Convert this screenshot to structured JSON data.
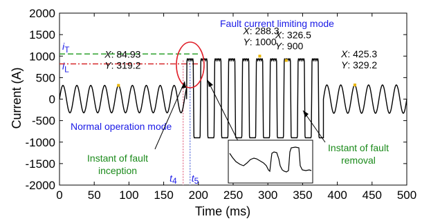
{
  "chart_data": {
    "type": "line",
    "xlabel": "Time (ms)",
    "ylabel": "Current (A)",
    "xlim": [
      0,
      500
    ],
    "ylim": [
      -2000,
      2000
    ],
    "x_ticks": [
      0,
      50,
      100,
      150,
      200,
      250,
      300,
      350,
      400,
      450,
      500
    ],
    "y_ticks": [
      -2000,
      -1500,
      -1000,
      -500,
      0,
      500,
      1000,
      1500,
      2000
    ],
    "grid": false,
    "series": [
      {
        "color": "#000000",
        "segments": [
          {
            "phase": "normal",
            "x_range": [
              0,
              183
            ],
            "shape": "sine",
            "amplitude": 319.2,
            "frequency_hz": 50
          },
          {
            "phase": "fault limiting",
            "x_range": [
              183,
              380
            ],
            "shape": "square",
            "amplitude": 900,
            "peak": 1000,
            "frequency_hz": 50
          },
          {
            "phase": "after removal",
            "x_range": [
              380,
              500
            ],
            "shape": "sine",
            "amplitude": 329.2,
            "frequency_hz": 50
          }
        ]
      }
    ],
    "threshold_lines": [
      {
        "label_main": "i",
        "label_sub": "T",
        "y": 1050,
        "x_range": [
          0,
          200
        ],
        "color": "#2ca02c",
        "style": "dashed"
      },
      {
        "label_main": "i",
        "label_sub": "L",
        "y": 820,
        "x_range": [
          0,
          200
        ],
        "color": "#d62728",
        "style": "dash-dot"
      }
    ],
    "vertical_markers": [
      {
        "label_main": "t",
        "label_sub": "4",
        "x": 178,
        "color": "#e0607e",
        "style": "dotted"
      },
      {
        "label_main": "t",
        "label_sub": "5",
        "x": 188,
        "color": "#4a62d8",
        "style": "dotted"
      }
    ],
    "data_labels": [
      {
        "x_text": "84.93",
        "y_text": "319.2",
        "x": 84.93,
        "y": 319.2
      },
      {
        "x_text": "288.3",
        "y_text": "1000",
        "x": 288.3,
        "y": 1000
      },
      {
        "x_text": "326.5",
        "y_text": "900",
        "x": 326.5,
        "y": 900
      },
      {
        "x_text": "425.3",
        "y_text": "329.2",
        "x": 425.3,
        "y": 329.2
      }
    ],
    "annotations": {
      "fault_mode": "Fault current limiting mode",
      "normal_mode": "Normal operation mode",
      "inception_line1": "Instant of fault",
      "inception_line2": "inception",
      "removal_line1": "Instant of fault",
      "removal_line2": "removal"
    },
    "data_label_prefix_x": "X",
    "data_label_prefix_y": "Y",
    "colors": {
      "blue": "#1a1ae6",
      "green": "#1a8a1a",
      "highlight": "#e0202a"
    }
  }
}
